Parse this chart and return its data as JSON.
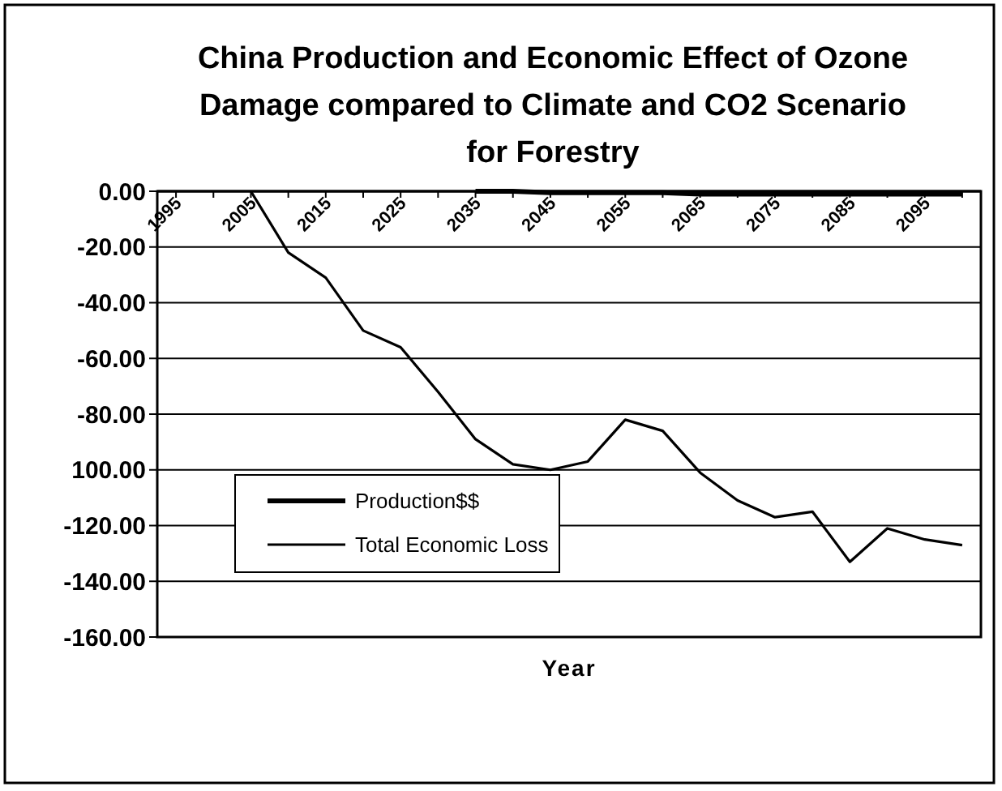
{
  "chart_data": {
    "type": "line",
    "title": "China Production and Economic Effect of Ozone Damage compared to Climate and CO2 Scenario for Forestry",
    "xlabel": "Year",
    "categories": [
      "1995",
      null,
      "2005",
      null,
      "2015",
      null,
      "2025",
      null,
      "2035",
      null,
      "2045",
      null,
      "2055",
      null,
      "2065",
      null,
      "2075",
      null,
      "2085",
      null,
      "2095",
      null
    ],
    "series": [
      {
        "name": "Production$$",
        "color": "#000000",
        "values": [
          null,
          null,
          null,
          null,
          null,
          null,
          null,
          null,
          0,
          0,
          -0.5,
          -0.5,
          -0.5,
          -0.5,
          -1,
          -1,
          -1,
          -1,
          -1,
          -1,
          -1,
          -1
        ]
      },
      {
        "name": "Total Economic Loss",
        "color": "#000000",
        "values": [
          null,
          null,
          0,
          -22,
          -31,
          -50,
          -56,
          -72,
          -89,
          -98,
          -100,
          -97,
          -82,
          -86,
          -101,
          -111,
          -117,
          -115,
          -133,
          -121,
          -125,
          -127
        ]
      }
    ],
    "ylim": [
      -160,
      0
    ],
    "yticks": [
      {
        "value": 0,
        "label": "0.00"
      },
      {
        "value": -20,
        "label": "-20.00"
      },
      {
        "value": -40,
        "label": "-40.00"
      },
      {
        "value": -60,
        "label": "-60.00"
      },
      {
        "value": -80,
        "label": "-80.00"
      },
      {
        "value": -100,
        "label": "100.00"
      },
      {
        "value": -120,
        "label": "-120.00"
      },
      {
        "value": -140,
        "label": "-140.00"
      },
      {
        "value": -160,
        "label": "-160.00"
      }
    ],
    "grid": "y",
    "legend": "bottom left",
    "marker": "none",
    "line_style": "solid"
  }
}
